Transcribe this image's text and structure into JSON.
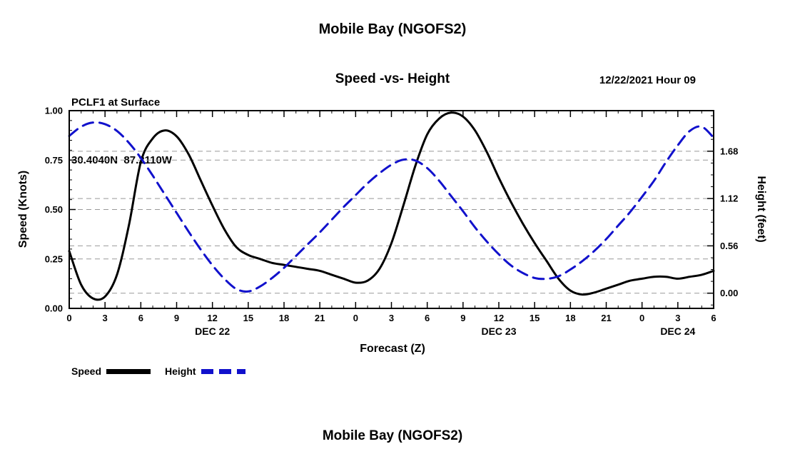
{
  "header": {
    "title": "Mobile Bay (NGOFS2)",
    "station_line1": "PCLF1 at Surface",
    "station_line2": "30.4040N  87.2110W",
    "subtitle": "Speed -vs- Height",
    "datetime": "12/22/2021 Hour 09"
  },
  "legend": {
    "speed_label": "Speed",
    "height_label": "Height"
  },
  "footer": {
    "title": "Mobile Bay (NGOFS2)"
  },
  "colors": {
    "speed": "#000000",
    "height": "#1111cc",
    "grid": "#999999"
  },
  "chart_data": {
    "type": "line",
    "title": "Speed -vs- Height",
    "xlabel": "Forecast (Z)",
    "ylabel_left": "Speed (Knots)",
    "ylabel_right": "Height (feet)",
    "xlim": [
      0,
      54
    ],
    "x_tick_interval": 3,
    "x_tick_hours": [
      0,
      3,
      6,
      9,
      12,
      15,
      18,
      21,
      24,
      27,
      30,
      33,
      36,
      39,
      42,
      45,
      48,
      51,
      54
    ],
    "x_tick_labels": [
      "0",
      "3",
      "6",
      "9",
      "12",
      "15",
      "18",
      "21",
      "0",
      "3",
      "6",
      "9",
      "12",
      "15",
      "18",
      "21",
      "0",
      "3",
      "6"
    ],
    "x_date_labels": [
      {
        "hour": 12,
        "label": "DEC 22"
      },
      {
        "hour": 36,
        "label": "DEC 23"
      },
      {
        "hour": 51,
        "label": "DEC 24"
      }
    ],
    "left_ylim": [
      0.0,
      1.0
    ],
    "left_ticks": [
      0.0,
      0.25,
      0.5,
      0.75,
      1.0
    ],
    "right_ylim": [
      -0.18,
      2.16
    ],
    "right_ticks": [
      0.0,
      0.56,
      1.12,
      1.68
    ],
    "grid": true,
    "legend_position": "bottom-left",
    "x": [
      0,
      1,
      2,
      3,
      4,
      5,
      6,
      7,
      8,
      9,
      10,
      11,
      12,
      13,
      14,
      15,
      16,
      17,
      18,
      19,
      20,
      21,
      22,
      23,
      24,
      25,
      26,
      27,
      28,
      29,
      30,
      31,
      32,
      33,
      34,
      35,
      36,
      37,
      38,
      39,
      40,
      41,
      42,
      43,
      44,
      45,
      46,
      47,
      48,
      49,
      50,
      51,
      52,
      53,
      54
    ],
    "series": [
      {
        "name": "Speed",
        "axis": "left",
        "unit": "knots",
        "style": "solid",
        "color": "#000000",
        "values": [
          0.29,
          0.12,
          0.05,
          0.06,
          0.17,
          0.42,
          0.74,
          0.86,
          0.9,
          0.87,
          0.78,
          0.65,
          0.52,
          0.4,
          0.31,
          0.27,
          0.25,
          0.23,
          0.22,
          0.21,
          0.2,
          0.19,
          0.17,
          0.15,
          0.13,
          0.14,
          0.2,
          0.33,
          0.52,
          0.72,
          0.88,
          0.96,
          0.99,
          0.97,
          0.9,
          0.79,
          0.66,
          0.54,
          0.43,
          0.33,
          0.24,
          0.15,
          0.09,
          0.07,
          0.08,
          0.1,
          0.12,
          0.14,
          0.15,
          0.16,
          0.16,
          0.15,
          0.16,
          0.17,
          0.19
        ]
      },
      {
        "name": "Height",
        "axis": "right",
        "unit": "feet",
        "style": "dashed",
        "color": "#1111cc",
        "values": [
          1.86,
          1.97,
          2.02,
          2.0,
          1.92,
          1.78,
          1.6,
          1.39,
          1.17,
          0.95,
          0.73,
          0.52,
          0.33,
          0.17,
          0.05,
          0.02,
          0.08,
          0.18,
          0.3,
          0.44,
          0.58,
          0.72,
          0.87,
          1.02,
          1.16,
          1.3,
          1.42,
          1.52,
          1.58,
          1.57,
          1.48,
          1.33,
          1.15,
          0.97,
          0.78,
          0.61,
          0.46,
          0.33,
          0.24,
          0.18,
          0.17,
          0.2,
          0.28,
          0.38,
          0.5,
          0.64,
          0.8,
          0.96,
          1.14,
          1.33,
          1.55,
          1.75,
          1.92,
          1.97,
          1.84
        ]
      }
    ]
  }
}
